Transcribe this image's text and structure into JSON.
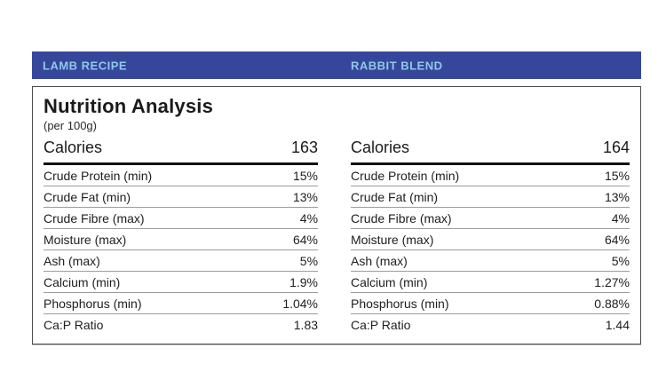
{
  "theme": {
    "accent_blue": "#36479B",
    "tab_text": "#8FC9E6"
  },
  "tabs": [
    {
      "label": "LAMB RECIPE"
    },
    {
      "label": "RABBIT BLEND"
    }
  ],
  "panel": {
    "title": "Nutrition Analysis",
    "subtitle": "(per 100g)",
    "columns": [
      {
        "name": "LAMB RECIPE",
        "calories_label": "Calories",
        "calories_value": "163",
        "rows": [
          {
            "label": "Crude Protein (min)",
            "value": "15%"
          },
          {
            "label": "Crude Fat (min)",
            "value": "13%"
          },
          {
            "label": "Crude Fibre (max)",
            "value": "4%"
          },
          {
            "label": "Moisture (max)",
            "value": "64%"
          },
          {
            "label": "Ash (max)",
            "value": "5%"
          },
          {
            "label": "Calcium (min)",
            "value": "1.9%"
          },
          {
            "label": "Phosphorus (min)",
            "value": "1.04%"
          },
          {
            "label": "Ca:P Ratio",
            "value": "1.83"
          }
        ]
      },
      {
        "name": "RABBIT BLEND",
        "calories_label": "Calories",
        "calories_value": "164",
        "rows": [
          {
            "label": "Crude Protein (min)",
            "value": "15%"
          },
          {
            "label": "Crude Fat (min)",
            "value": "13%"
          },
          {
            "label": "Crude Fibre (max)",
            "value": "4%"
          },
          {
            "label": "Moisture (max)",
            "value": "64%"
          },
          {
            "label": "Ash (max)",
            "value": "5%"
          },
          {
            "label": "Calcium (min)",
            "value": "1.27%"
          },
          {
            "label": "Phosphorus (min)",
            "value": "0.88%"
          },
          {
            "label": "Ca:P Ratio",
            "value": "1.44"
          }
        ]
      }
    ]
  }
}
